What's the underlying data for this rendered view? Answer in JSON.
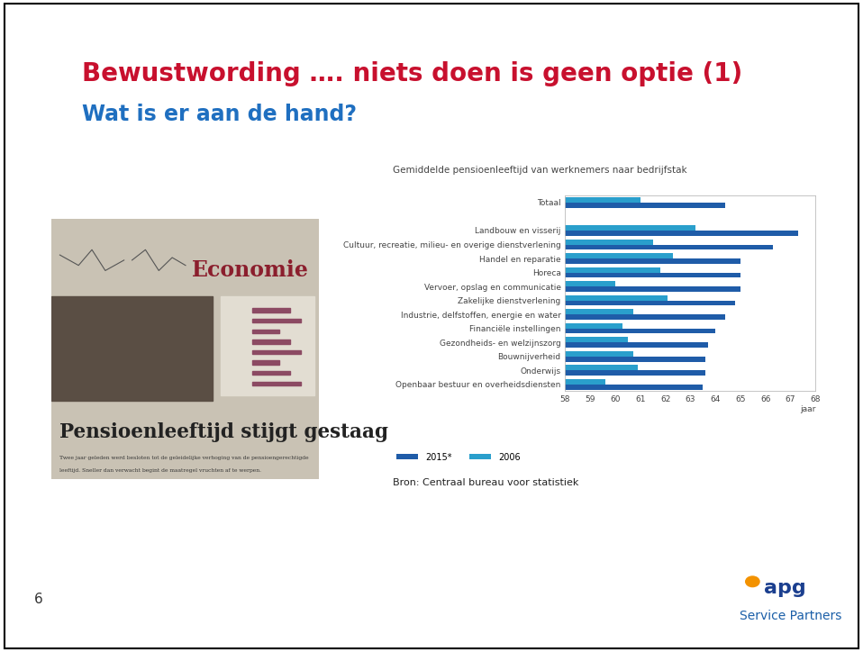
{
  "slide": {
    "title": "Bewustwording …. niets doen is geen optie (1)",
    "subtitle": "Wat is er aan de hand?",
    "page_number": "6",
    "logo": "apg",
    "logo_subtitle": "Service Partners",
    "source": "Bron: Centraal bureau voor statistiek",
    "newspaper": {
      "section": "Economie",
      "headline": "Pensioenleeftijd stijgt gestaag",
      "lead": [
        "Twee jaar geleden werd besloten tot de geleidelijke verhoging van de pensioengerechtigde",
        "leeftijd. Sneller dan verwacht begint de maatregel vruchten af te werpen."
      ]
    }
  },
  "chart_data": {
    "type": "bar",
    "orientation": "horizontal",
    "title": "Gemiddelde pensioenleeftijd van werknemers naar bedrijfstak",
    "x_label": "jaar",
    "categories": [
      "Totaal",
      null,
      "Landbouw en visserij",
      "Cultuur, recreatie, milieu- en overige dienstverlening",
      "Handel en reparatie",
      "Horeca",
      "Vervoer, opslag en communicatie",
      "Zakelijke dienstverlening",
      "Industrie, delfstoffen, energie en water",
      "Financiële instellingen",
      "Gezondheids- en welzijnszorg",
      "Bouwnijverheid",
      "Onderwijs",
      "Openbaar bestuur en overheidsdiensten"
    ],
    "series": [
      {
        "name": "2015*",
        "color": "#1f5ca8",
        "values": [
          64.4,
          null,
          67.3,
          66.3,
          65.0,
          65.0,
          65.0,
          64.8,
          64.4,
          64.0,
          63.7,
          63.6,
          63.6,
          63.5
        ]
      },
      {
        "name": "2006",
        "color": "#2a9fcc",
        "values": [
          61.0,
          null,
          63.2,
          61.5,
          62.3,
          61.8,
          60.0,
          62.1,
          60.7,
          60.3,
          60.5,
          60.7,
          60.9,
          59.6
        ]
      }
    ],
    "xlim": [
      58,
      68
    ],
    "xticks": [
      58,
      59,
      60,
      61,
      62,
      63,
      64,
      65,
      66,
      67,
      68
    ],
    "grid": false,
    "legend": "lower left"
  }
}
